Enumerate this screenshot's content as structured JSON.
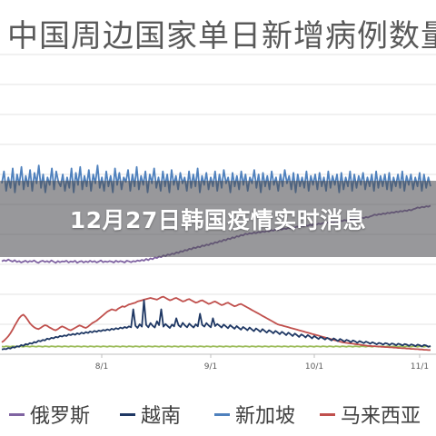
{
  "chart_data": {
    "type": "line",
    "title": "中国周边国家单日新增病例数量",
    "x_tick_labels": [
      "8/1",
      "9/1",
      "10/1",
      "11/1"
    ],
    "grid": true,
    "legend_position": "bottom",
    "series": [
      {
        "name": "俄罗斯",
        "color": "#8064a2",
        "values": [
          310,
          314,
          311,
          316,
          312,
          309,
          314,
          308,
          311,
          306,
          309,
          312,
          307,
          311,
          309,
          313,
          308,
          305,
          310,
          312,
          308,
          311,
          307,
          313,
          309,
          305,
          311,
          307,
          310,
          309,
          312,
          306,
          310,
          308,
          312,
          305,
          309,
          311,
          306,
          310,
          307,
          312,
          308,
          311,
          306,
          309,
          313,
          307,
          310,
          308,
          311,
          309,
          306,
          312,
          308,
          311,
          309,
          306,
          312,
          310,
          307,
          311,
          309,
          313,
          311,
          315,
          312,
          318,
          314,
          320,
          317,
          323,
          321,
          326,
          324,
          330,
          327,
          333,
          331,
          336,
          334,
          340,
          338,
          344,
          342,
          348,
          346,
          352,
          350,
          356,
          354,
          359,
          357,
          363,
          361,
          366,
          364,
          370,
          368,
          374,
          372,
          378,
          376,
          382,
          380,
          386,
          384,
          390,
          388,
          394,
          392,
          398,
          396,
          402,
          400,
          404,
          402,
          406,
          404,
          408,
          406,
          410,
          408,
          412,
          410,
          414,
          412,
          416,
          414,
          418,
          416,
          420,
          418,
          422,
          420,
          424,
          422,
          426,
          424,
          428,
          426,
          430,
          428,
          432,
          430,
          434,
          432,
          436,
          434,
          438,
          436,
          440,
          438,
          442,
          440,
          444,
          442,
          446,
          444,
          448,
          446,
          450,
          448,
          452,
          450,
          454,
          452,
          456,
          454,
          458,
          456,
          460,
          462,
          466,
          464,
          468,
          466,
          470,
          468,
          472,
          470,
          474,
          472,
          476,
          474,
          478,
          476,
          480,
          478,
          482,
          480,
          484,
          486,
          490,
          488,
          492,
          490,
          494,
          492,
          496
        ]
      },
      {
        "name": "越南",
        "color": "#1f3864",
        "values": [
          16,
          18,
          17,
          21,
          19,
          24,
          22,
          27,
          25,
          31,
          28,
          34,
          32,
          37,
          35,
          41,
          39,
          45,
          43,
          48,
          46,
          52,
          50,
          55,
          53,
          58,
          56,
          61,
          59,
          63,
          61,
          66,
          64,
          68,
          65,
          70,
          67,
          72,
          69,
          74,
          71,
          76,
          73,
          78,
          75,
          79,
          77,
          81,
          79,
          83,
          80,
          85,
          82,
          87,
          84,
          89,
          86,
          91,
          88,
          93,
          90,
          150,
          95,
          88,
          100,
          92,
          180,
          98,
          90,
          104,
          95,
          89,
          110,
          97,
          150,
          92,
          101,
          94,
          88,
          99,
          93,
          120,
          97,
          91,
          105,
          96,
          90,
          102,
          95,
          89,
          100,
          93,
          135,
          98,
          92,
          104,
          96,
          90,
          120,
          94,
          101,
          95,
          89,
          99,
          93,
          87,
          97,
          91,
          85,
          94,
          88,
          82,
          91,
          86,
          80,
          89,
          83,
          77,
          86,
          81,
          75,
          84,
          78,
          72,
          80,
          76,
          70,
          78,
          73,
          67,
          75,
          70,
          64,
          72,
          67,
          61,
          69,
          64,
          58,
          66,
          62,
          56,
          64,
          59,
          53,
          61,
          56,
          51,
          58,
          54,
          49,
          55,
          51,
          46,
          53,
          49,
          44,
          51,
          47,
          42,
          48,
          45,
          40,
          46,
          43,
          38,
          44,
          41,
          37,
          42,
          39,
          35,
          40,
          37,
          33,
          38,
          36,
          32,
          37,
          35,
          31,
          36,
          34,
          30,
          35,
          33,
          29,
          34,
          32,
          28,
          33,
          31,
          27,
          32,
          30,
          26,
          31,
          29,
          25,
          28
        ]
      },
      {
        "name": "新加坡",
        "color": "#4f81bd",
        "values": [
          570,
          610,
          545,
          590,
          555,
          620,
          540,
          600,
          565,
          625,
          550,
          595,
          560,
          615,
          545,
          605,
          570,
          630,
          555,
          600,
          540,
          590,
          565,
          620,
          550,
          610,
          575,
          560,
          600,
          545,
          590,
          555,
          620,
          540,
          605,
          565,
          625,
          550,
          595,
          560,
          615,
          545,
          600,
          570,
          630,
          555,
          590,
          545,
          610,
          560,
          595,
          540,
          620,
          565,
          605,
          550,
          590,
          575,
          615,
          545,
          600,
          560,
          625,
          550,
          595,
          565,
          610,
          540,
          600,
          570,
          620,
          555,
          590,
          545,
          610,
          560,
          600,
          540,
          615,
          565,
          595,
          550,
          605,
          570,
          590,
          545,
          610,
          555,
          600,
          560,
          620,
          540,
          595,
          565,
          605,
          550,
          590,
          560,
          610,
          545,
          600,
          555,
          615,
          570,
          590,
          540,
          605,
          560,
          595,
          550,
          610,
          565,
          600,
          545,
          590,
          570,
          615,
          555,
          600,
          540,
          605,
          560,
          595,
          550,
          610,
          565,
          590,
          545,
          600,
          560,
          615,
          570,
          595,
          550,
          605,
          540,
          600,
          560,
          590,
          555,
          610,
          545,
          595,
          565,
          600,
          550,
          605,
          560,
          590,
          545,
          610,
          555,
          595,
          565,
          600,
          540,
          605,
          550,
          590,
          560,
          610,
          545,
          600,
          555,
          595,
          565,
          605,
          550,
          590,
          560,
          600,
          545,
          610,
          555,
          595,
          560,
          600,
          550,
          605,
          545,
          590,
          560,
          600,
          555,
          610,
          545,
          595,
          565,
          600,
          550,
          590,
          560,
          605,
          545,
          600,
          555,
          590,
          560
        ]
      },
      {
        "name": "马来西亚",
        "color": "#c0504d",
        "values": [
          40,
          45,
          52,
          60,
          70,
          82,
          95,
          108,
          120,
          128,
          132,
          125,
          115,
          104,
          96,
          90,
          86,
          84,
          88,
          93,
          97,
          95,
          90,
          86,
          82,
          80,
          84,
          89,
          93,
          90,
          86,
          82,
          80,
          84,
          88,
          92,
          96,
          94,
          90,
          88,
          92,
          98,
          104,
          108,
          112,
          118,
          124,
          130,
          136,
          142,
          146,
          150,
          148,
          146,
          152,
          156,
          160,
          158,
          162,
          166,
          168,
          170,
          172,
          176,
          178,
          180,
          182,
          184,
          186,
          188,
          186,
          184,
          182,
          186,
          190,
          192,
          188,
          184,
          180,
          182,
          186,
          188,
          184,
          180,
          176,
          178,
          182,
          184,
          180,
          176,
          172,
          174,
          178,
          180,
          176,
          172,
          168,
          170,
          174,
          176,
          172,
          168,
          164,
          166,
          170,
          172,
          168,
          164,
          160,
          162,
          166,
          168,
          164,
          160,
          156,
          152,
          148,
          144,
          140,
          136,
          132,
          128,
          124,
          120,
          116,
          112,
          108,
          104,
          100,
          98,
          96,
          94,
          92,
          90,
          88,
          86,
          84,
          82,
          80,
          78,
          76,
          74,
          72,
          70,
          68,
          66,
          64,
          62,
          60,
          58,
          56,
          54,
          52,
          50,
          48,
          46,
          44,
          42,
          40,
          39,
          38,
          37,
          36,
          35,
          34,
          33,
          32,
          31,
          30,
          29,
          28,
          28,
          27,
          27,
          26,
          26,
          25,
          25,
          24,
          24,
          23,
          23,
          22,
          22,
          21,
          21,
          20,
          20,
          19,
          19,
          18,
          18,
          17,
          17,
          16,
          16,
          15,
          15,
          14,
          14
        ]
      },
      {
        "name": "",
        "color": "#9bbb59",
        "values": [
          26,
          25,
          27,
          26,
          25,
          27,
          26,
          25,
          27,
          26,
          25,
          27,
          26,
          25,
          27,
          26,
          25,
          27,
          26,
          25,
          27,
          26,
          25,
          27,
          26,
          25,
          27,
          26,
          25,
          27,
          26,
          25,
          27,
          26,
          25,
          27,
          26,
          25,
          27,
          26,
          25,
          27,
          26,
          25,
          27,
          26,
          25,
          27,
          26,
          25,
          27,
          26,
          25,
          27,
          26,
          25,
          27,
          26,
          25,
          27,
          26,
          25,
          27,
          26,
          25,
          27,
          26,
          25,
          27,
          26,
          25,
          27,
          26,
          25,
          27,
          26,
          25,
          27,
          26,
          25,
          27,
          26,
          25,
          27,
          26,
          25,
          27,
          26,
          25,
          27,
          26,
          25,
          27,
          26,
          25,
          27,
          26,
          25,
          27,
          26,
          25,
          27,
          26,
          25,
          27,
          26,
          25,
          27,
          26,
          25,
          27,
          26,
          25,
          27,
          26,
          25,
          27,
          26,
          25,
          27,
          26,
          25,
          27,
          26,
          25,
          27,
          26,
          25,
          27,
          26,
          25,
          27,
          26,
          25,
          27,
          26,
          25,
          27,
          26,
          25,
          27,
          26,
          25,
          27,
          26,
          25,
          27,
          26,
          25,
          27,
          26,
          25,
          27,
          26,
          25,
          27,
          26,
          25,
          27,
          26,
          25,
          27,
          26,
          25,
          27,
          26,
          25,
          27,
          26,
          25,
          27,
          26,
          25,
          27,
          26,
          25,
          27,
          26,
          25,
          27,
          26,
          25,
          27,
          26,
          25,
          27,
          26,
          25,
          27,
          26,
          25,
          27,
          26,
          25,
          27,
          26,
          25,
          27,
          26,
          25
        ]
      }
    ],
    "ylim": [
      0,
      1000
    ]
  },
  "banner": {
    "text": "12月27日韩国疫情实时消息"
  }
}
